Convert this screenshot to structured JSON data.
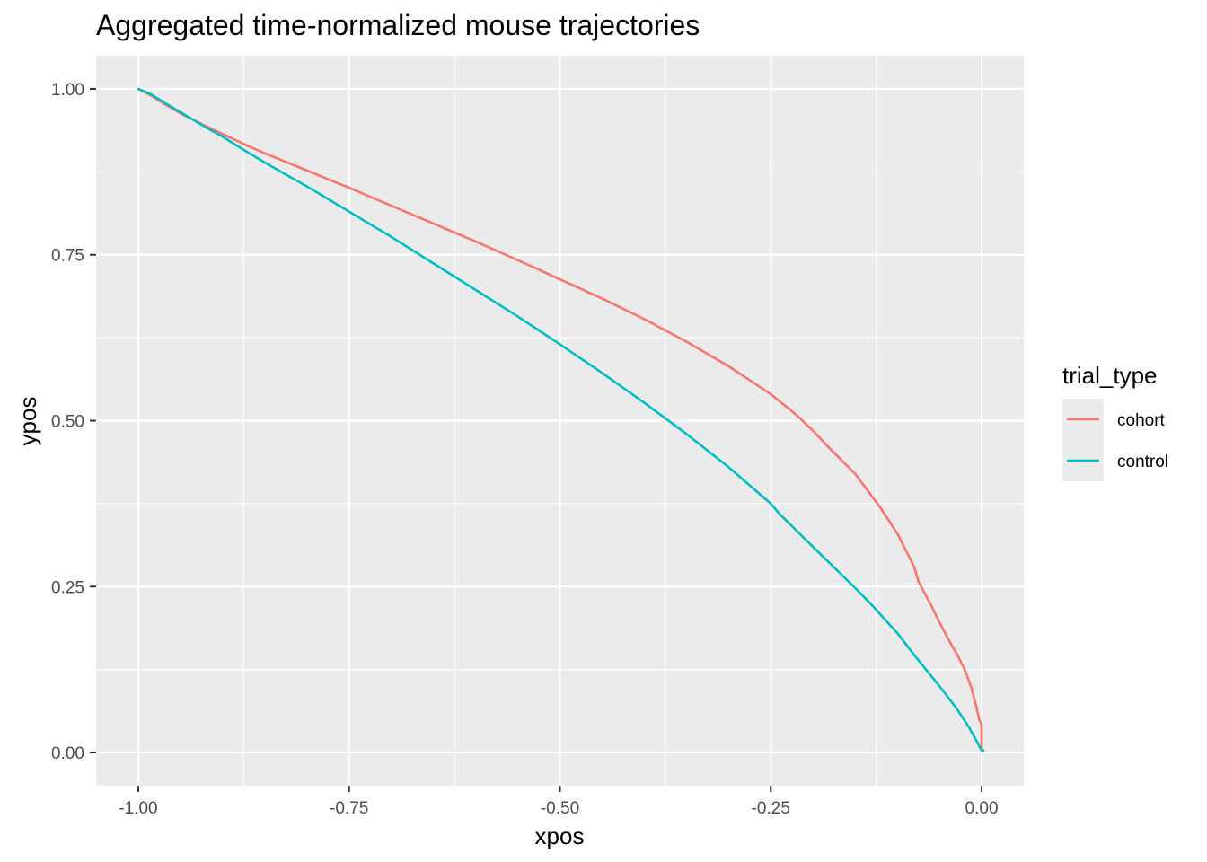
{
  "chart_data": {
    "type": "line",
    "title": "Aggregated time-normalized mouse trajectories",
    "xlabel": "xpos",
    "ylabel": "ypos",
    "xlim": [
      -1.05,
      0.05
    ],
    "ylim": [
      -0.05,
      1.05
    ],
    "x_ticks": [
      -1.0,
      -0.75,
      -0.5,
      -0.25,
      0.0
    ],
    "x_tick_labels": [
      "-1.00",
      "-0.75",
      "-0.50",
      "-0.25",
      "0.00"
    ],
    "y_ticks": [
      0.0,
      0.25,
      0.5,
      0.75,
      1.0
    ],
    "y_tick_labels": [
      "0.00",
      "0.25",
      "0.50",
      "0.75",
      "1.00"
    ],
    "grid": true,
    "legend": {
      "title": "trial_type",
      "position": "right"
    },
    "series": [
      {
        "name": "cohort",
        "color": "#F8766D",
        "points": [
          [
            -1.0,
            1.0
          ],
          [
            -0.985,
            0.99
          ],
          [
            -0.97,
            0.978
          ],
          [
            -0.95,
            0.963
          ],
          [
            -0.92,
            0.944
          ],
          [
            -0.9,
            0.932
          ],
          [
            -0.87,
            0.914
          ],
          [
            -0.85,
            0.903
          ],
          [
            -0.8,
            0.877
          ],
          [
            -0.75,
            0.851
          ],
          [
            -0.7,
            0.824
          ],
          [
            -0.65,
            0.797
          ],
          [
            -0.6,
            0.77
          ],
          [
            -0.55,
            0.742
          ],
          [
            -0.5,
            0.713
          ],
          [
            -0.45,
            0.684
          ],
          [
            -0.4,
            0.653
          ],
          [
            -0.35,
            0.619
          ],
          [
            -0.3,
            0.582
          ],
          [
            -0.25,
            0.54
          ],
          [
            -0.22,
            0.509
          ],
          [
            -0.2,
            0.485
          ],
          [
            -0.18,
            0.458
          ],
          [
            -0.15,
            0.42
          ],
          [
            -0.12,
            0.369
          ],
          [
            -0.1,
            0.33
          ],
          [
            -0.08,
            0.28
          ],
          [
            -0.075,
            0.258
          ],
          [
            -0.06,
            0.222
          ],
          [
            -0.05,
            0.196
          ],
          [
            -0.04,
            0.172
          ],
          [
            -0.03,
            0.15
          ],
          [
            -0.02,
            0.125
          ],
          [
            -0.012,
            0.097
          ],
          [
            -0.006,
            0.068
          ],
          [
            -0.003,
            0.05
          ],
          [
            0.0,
            0.042
          ],
          [
            0.0,
            0.005
          ],
          [
            0.002,
            0.003
          ]
        ]
      },
      {
        "name": "control",
        "color": "#00BFC4",
        "points": [
          [
            -1.0,
            1.0
          ],
          [
            -0.985,
            0.992
          ],
          [
            -0.97,
            0.98
          ],
          [
            -0.95,
            0.965
          ],
          [
            -0.92,
            0.942
          ],
          [
            -0.9,
            0.928
          ],
          [
            -0.88,
            0.912
          ],
          [
            -0.85,
            0.889
          ],
          [
            -0.8,
            0.853
          ],
          [
            -0.75,
            0.815
          ],
          [
            -0.7,
            0.777
          ],
          [
            -0.65,
            0.737
          ],
          [
            -0.6,
            0.697
          ],
          [
            -0.55,
            0.657
          ],
          [
            -0.5,
            0.615
          ],
          [
            -0.45,
            0.572
          ],
          [
            -0.4,
            0.527
          ],
          [
            -0.35,
            0.48
          ],
          [
            -0.3,
            0.43
          ],
          [
            -0.25,
            0.375
          ],
          [
            -0.24,
            0.36
          ],
          [
            -0.2,
            0.31
          ],
          [
            -0.15,
            0.248
          ],
          [
            -0.13,
            0.222
          ],
          [
            -0.1,
            0.18
          ],
          [
            -0.08,
            0.147
          ],
          [
            -0.05,
            0.1
          ],
          [
            -0.03,
            0.067
          ],
          [
            -0.015,
            0.038
          ],
          [
            -0.005,
            0.015
          ],
          [
            0.0,
            0.003
          ],
          [
            0.002,
            0.003
          ]
        ]
      }
    ]
  }
}
